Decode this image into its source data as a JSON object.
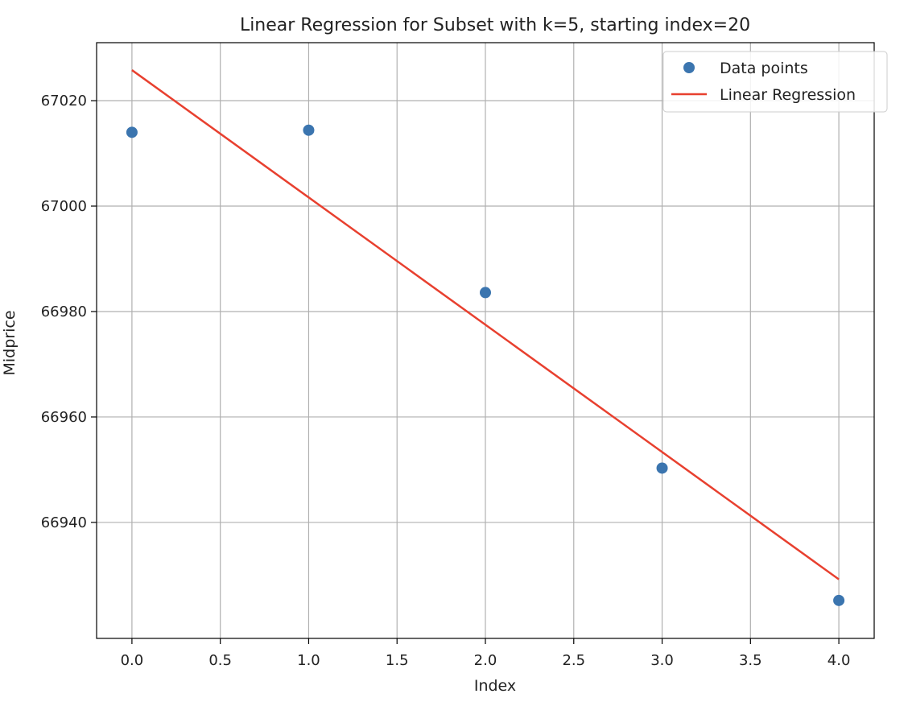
{
  "chart_data": {
    "type": "scatter",
    "title": "Linear Regression for Subset with k=5, starting index=20",
    "xlabel": "Index",
    "ylabel": "Midprice",
    "xlim": [
      -0.2,
      4.2
    ],
    "ylim": [
      66918,
      67031
    ],
    "x_ticks": [
      0.0,
      0.5,
      1.0,
      1.5,
      2.0,
      2.5,
      3.0,
      3.5,
      4.0
    ],
    "x_tick_labels": [
      "0.0",
      "0.5",
      "1.0",
      "1.5",
      "2.0",
      "2.5",
      "3.0",
      "3.5",
      "4.0"
    ],
    "y_ticks": [
      66940,
      66960,
      66980,
      67000,
      67020
    ],
    "y_tick_labels": [
      "66940",
      "66960",
      "66980",
      "67000",
      "67020"
    ],
    "grid": true,
    "legend_position": "top-right",
    "series": [
      {
        "name": "Data points",
        "kind": "scatter",
        "color": "#3b75af",
        "x": [
          0,
          1,
          2,
          3,
          4
        ],
        "y": [
          67014.0,
          67014.4,
          66983.6,
          66950.3,
          66925.2
        ]
      },
      {
        "name": "Linear Regression",
        "kind": "line",
        "color": "#e8402f",
        "x": [
          0,
          4
        ],
        "y": [
          67025.8,
          66929.2
        ]
      }
    ]
  }
}
